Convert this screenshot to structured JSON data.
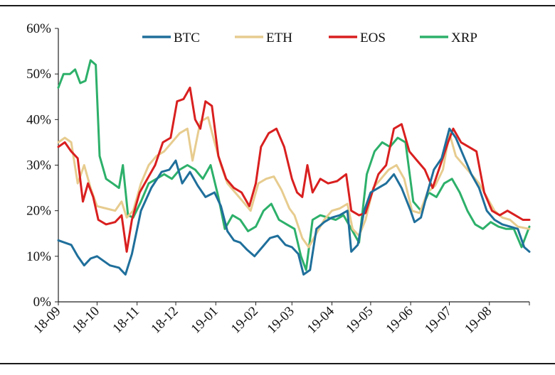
{
  "chart_data": {
    "type": "line",
    "ylim": [
      0,
      60
    ],
    "yticks": [
      "0%",
      "10%",
      "20%",
      "30%",
      "40%",
      "50%",
      "60%"
    ],
    "xrange": [
      "2018-09-01",
      "2019-09-01"
    ],
    "xticks": [
      {
        "label": "18-09",
        "date": "2018-09-01"
      },
      {
        "label": "18-10",
        "date": "2018-10-01"
      },
      {
        "label": "18-11",
        "date": "2018-11-01"
      },
      {
        "label": "18-12",
        "date": "2018-12-01"
      },
      {
        "label": "19-01",
        "date": "2019-01-01"
      },
      {
        "label": "19-02",
        "date": "2019-02-01"
      },
      {
        "label": "19-03",
        "date": "2019-03-01"
      },
      {
        "label": "19-04",
        "date": "2019-04-01"
      },
      {
        "label": "19-05",
        "date": "2019-05-01"
      },
      {
        "label": "19-06",
        "date": "2019-06-01"
      },
      {
        "label": "19-07",
        "date": "2019-07-01"
      },
      {
        "label": "19-08",
        "date": "2019-08-01"
      }
    ],
    "legend_position": "top",
    "grid": false,
    "series": [
      {
        "name": "BTC",
        "color": "#1f6f9b",
        "points": [
          [
            "2018-09-01",
            13.5
          ],
          [
            "2018-09-11",
            12.5
          ],
          [
            "2018-09-16",
            10.0
          ],
          [
            "2018-09-21",
            8.0
          ],
          [
            "2018-09-26",
            9.5
          ],
          [
            "2018-10-01",
            10.0
          ],
          [
            "2018-10-06",
            9.0
          ],
          [
            "2018-10-11",
            8.0
          ],
          [
            "2018-10-18",
            7.5
          ],
          [
            "2018-10-23",
            6.0
          ],
          [
            "2018-10-28",
            10.5
          ],
          [
            "2018-11-04",
            20.0
          ],
          [
            "2018-11-12",
            25.0
          ],
          [
            "2018-11-20",
            28.5
          ],
          [
            "2018-11-26",
            29.0
          ],
          [
            "2018-12-01",
            31.0
          ],
          [
            "2018-12-06",
            26.0
          ],
          [
            "2018-12-12",
            28.5
          ],
          [
            "2018-12-18",
            25.5
          ],
          [
            "2018-12-24",
            23.0
          ],
          [
            "2018-12-31",
            24.0
          ],
          [
            "2019-01-05",
            21.0
          ],
          [
            "2019-01-10",
            15.5
          ],
          [
            "2019-01-15",
            13.5
          ],
          [
            "2019-01-20",
            13.0
          ],
          [
            "2019-01-25",
            11.5
          ],
          [
            "2019-01-31",
            10.0
          ],
          [
            "2019-02-06",
            12.0
          ],
          [
            "2019-02-12",
            14.0
          ],
          [
            "2019-02-18",
            14.5
          ],
          [
            "2019-02-24",
            12.5
          ],
          [
            "2019-03-01",
            12.0
          ],
          [
            "2019-03-06",
            10.5
          ],
          [
            "2019-03-10",
            6.0
          ],
          [
            "2019-03-15",
            7.0
          ],
          [
            "2019-03-20",
            16.0
          ],
          [
            "2019-03-26",
            17.5
          ],
          [
            "2019-04-01",
            18.5
          ],
          [
            "2019-04-07",
            19.0
          ],
          [
            "2019-04-13",
            20.0
          ],
          [
            "2019-04-16",
            11.0
          ],
          [
            "2019-04-21",
            12.5
          ],
          [
            "2019-04-26",
            20.0
          ],
          [
            "2019-05-01",
            24.0
          ],
          [
            "2019-05-07",
            25.0
          ],
          [
            "2019-05-13",
            26.0
          ],
          [
            "2019-05-19",
            28.0
          ],
          [
            "2019-05-25",
            25.0
          ],
          [
            "2019-06-01",
            20.0
          ],
          [
            "2019-06-04",
            17.5
          ],
          [
            "2019-06-09",
            18.5
          ],
          [
            "2019-06-14",
            24.0
          ],
          [
            "2019-06-19",
            29.0
          ],
          [
            "2019-06-25",
            31.5
          ],
          [
            "2019-07-01",
            38.0
          ],
          [
            "2019-07-06",
            36.0
          ],
          [
            "2019-07-12",
            32.0
          ],
          [
            "2019-07-18",
            28.0
          ],
          [
            "2019-07-24",
            25.0
          ],
          [
            "2019-07-30",
            20.0
          ],
          [
            "2019-08-05",
            18.0
          ],
          [
            "2019-08-11",
            17.0
          ],
          [
            "2019-08-17",
            16.5
          ],
          [
            "2019-08-23",
            16.0
          ],
          [
            "2019-08-28",
            12.0
          ],
          [
            "2019-09-01",
            11.0
          ]
        ]
      },
      {
        "name": "ETH",
        "color": "#e7cc8f",
        "points": [
          [
            "2018-09-01",
            35.0
          ],
          [
            "2018-09-06",
            36.0
          ],
          [
            "2018-09-11",
            35.0
          ],
          [
            "2018-09-16",
            26.0
          ],
          [
            "2018-09-21",
            30.0
          ],
          [
            "2018-09-26",
            25.0
          ],
          [
            "2018-10-01",
            21.0
          ],
          [
            "2018-10-08",
            20.5
          ],
          [
            "2018-10-15",
            20.0
          ],
          [
            "2018-10-20",
            22.0
          ],
          [
            "2018-10-24",
            18.5
          ],
          [
            "2018-10-29",
            20.0
          ],
          [
            "2018-11-04",
            26.0
          ],
          [
            "2018-11-10",
            30.0
          ],
          [
            "2018-11-16",
            32.0
          ],
          [
            "2018-11-22",
            33.0
          ],
          [
            "2018-11-28",
            35.0
          ],
          [
            "2018-12-04",
            37.0
          ],
          [
            "2018-12-10",
            38.0
          ],
          [
            "2018-12-14",
            31.0
          ],
          [
            "2018-12-20",
            39.5
          ],
          [
            "2018-12-26",
            40.5
          ],
          [
            "2018-12-31",
            35.0
          ],
          [
            "2019-01-05",
            30.0
          ],
          [
            "2019-01-10",
            26.0
          ],
          [
            "2019-01-16",
            24.0
          ],
          [
            "2019-01-22",
            22.0
          ],
          [
            "2019-01-28",
            20.0
          ],
          [
            "2019-02-03",
            26.0
          ],
          [
            "2019-02-09",
            27.0
          ],
          [
            "2019-02-15",
            27.5
          ],
          [
            "2019-02-21",
            24.5
          ],
          [
            "2019-02-27",
            20.5
          ],
          [
            "2019-03-03",
            19.0
          ],
          [
            "2019-03-09",
            14.0
          ],
          [
            "2019-03-14",
            12.0
          ],
          [
            "2019-03-20",
            15.0
          ],
          [
            "2019-03-26",
            18.0
          ],
          [
            "2019-04-01",
            20.0
          ],
          [
            "2019-04-07",
            20.5
          ],
          [
            "2019-04-13",
            21.5
          ],
          [
            "2019-04-17",
            16.0
          ],
          [
            "2019-04-22",
            14.5
          ],
          [
            "2019-04-27",
            18.0
          ],
          [
            "2019-05-03",
            25.0
          ],
          [
            "2019-05-09",
            27.0
          ],
          [
            "2019-05-15",
            29.0
          ],
          [
            "2019-05-21",
            30.0
          ],
          [
            "2019-05-27",
            27.0
          ],
          [
            "2019-06-02",
            20.0
          ],
          [
            "2019-06-08",
            19.5
          ],
          [
            "2019-06-14",
            24.0
          ],
          [
            "2019-06-20",
            25.5
          ],
          [
            "2019-06-26",
            29.0
          ],
          [
            "2019-07-01",
            37.0
          ],
          [
            "2019-07-06",
            32.0
          ],
          [
            "2019-07-12",
            30.0
          ],
          [
            "2019-07-18",
            28.0
          ],
          [
            "2019-07-24",
            26.0
          ],
          [
            "2019-07-30",
            23.0
          ],
          [
            "2019-08-05",
            20.0
          ],
          [
            "2019-08-11",
            18.5
          ],
          [
            "2019-08-17",
            18.0
          ],
          [
            "2019-08-23",
            16.5
          ],
          [
            "2019-09-01",
            16.0
          ]
        ]
      },
      {
        "name": "EOS",
        "color": "#d91f1f",
        "points": [
          [
            "2018-09-01",
            34.0
          ],
          [
            "2018-09-06",
            35.0
          ],
          [
            "2018-09-11",
            33.0
          ],
          [
            "2018-09-16",
            31.5
          ],
          [
            "2018-09-20",
            22.0
          ],
          [
            "2018-09-24",
            26.0
          ],
          [
            "2018-09-28",
            23.0
          ],
          [
            "2018-10-02",
            18.0
          ],
          [
            "2018-10-08",
            17.0
          ],
          [
            "2018-10-15",
            17.5
          ],
          [
            "2018-10-20",
            19.0
          ],
          [
            "2018-10-24",
            11.0
          ],
          [
            "2018-10-28",
            18.0
          ],
          [
            "2018-11-03",
            24.0
          ],
          [
            "2018-11-09",
            27.0
          ],
          [
            "2018-11-15",
            30.0
          ],
          [
            "2018-11-21",
            35.0
          ],
          [
            "2018-11-27",
            36.0
          ],
          [
            "2018-12-02",
            44.0
          ],
          [
            "2018-12-07",
            44.5
          ],
          [
            "2018-12-12",
            47.0
          ],
          [
            "2018-12-16",
            40.0
          ],
          [
            "2018-12-20",
            38.0
          ],
          [
            "2018-12-24",
            44.0
          ],
          [
            "2018-12-29",
            43.0
          ],
          [
            "2019-01-03",
            32.0
          ],
          [
            "2019-01-09",
            27.0
          ],
          [
            "2019-01-15",
            25.0
          ],
          [
            "2019-01-21",
            24.0
          ],
          [
            "2019-01-27",
            21.0
          ],
          [
            "2019-02-01",
            26.0
          ],
          [
            "2019-02-05",
            34.0
          ],
          [
            "2019-02-11",
            37.0
          ],
          [
            "2019-02-17",
            38.0
          ],
          [
            "2019-02-23",
            34.0
          ],
          [
            "2019-03-01",
            27.0
          ],
          [
            "2019-03-05",
            24.0
          ],
          [
            "2019-03-09",
            23.0
          ],
          [
            "2019-03-13",
            30.0
          ],
          [
            "2019-03-17",
            24.0
          ],
          [
            "2019-03-23",
            27.0
          ],
          [
            "2019-03-29",
            26.0
          ],
          [
            "2019-04-05",
            26.5
          ],
          [
            "2019-04-12",
            28.0
          ],
          [
            "2019-04-16",
            20.0
          ],
          [
            "2019-04-22",
            19.0
          ],
          [
            "2019-04-27",
            19.5
          ],
          [
            "2019-05-01",
            23.0
          ],
          [
            "2019-05-07",
            28.0
          ],
          [
            "2019-05-13",
            30.0
          ],
          [
            "2019-05-19",
            38.0
          ],
          [
            "2019-05-25",
            39.0
          ],
          [
            "2019-05-31",
            33.0
          ],
          [
            "2019-06-06",
            31.0
          ],
          [
            "2019-06-12",
            29.0
          ],
          [
            "2019-06-18",
            25.0
          ],
          [
            "2019-06-24",
            30.0
          ],
          [
            "2019-06-30",
            35.0
          ],
          [
            "2019-07-04",
            38.0
          ],
          [
            "2019-07-10",
            35.0
          ],
          [
            "2019-07-16",
            34.0
          ],
          [
            "2019-07-22",
            33.0
          ],
          [
            "2019-07-28",
            24.0
          ],
          [
            "2019-08-03",
            20.0
          ],
          [
            "2019-08-09",
            19.0
          ],
          [
            "2019-08-15",
            20.0
          ],
          [
            "2019-08-21",
            19.0
          ],
          [
            "2019-08-27",
            18.0
          ],
          [
            "2019-09-01",
            18.0
          ]
        ]
      },
      {
        "name": "XRP",
        "color": "#2db06a",
        "points": [
          [
            "2018-09-01",
            47.0
          ],
          [
            "2018-09-05",
            50.0
          ],
          [
            "2018-09-10",
            50.0
          ],
          [
            "2018-09-14",
            51.0
          ],
          [
            "2018-09-18",
            48.0
          ],
          [
            "2018-09-22",
            48.5
          ],
          [
            "2018-09-26",
            53.0
          ],
          [
            "2018-09-30",
            52.0
          ],
          [
            "2018-10-03",
            32.0
          ],
          [
            "2018-10-08",
            27.0
          ],
          [
            "2018-10-13",
            26.0
          ],
          [
            "2018-10-18",
            25.0
          ],
          [
            "2018-10-21",
            30.0
          ],
          [
            "2018-10-25",
            19.0
          ],
          [
            "2018-10-29",
            18.5
          ],
          [
            "2018-11-04",
            22.0
          ],
          [
            "2018-11-10",
            26.0
          ],
          [
            "2018-11-16",
            27.0
          ],
          [
            "2018-11-22",
            28.0
          ],
          [
            "2018-11-28",
            27.0
          ],
          [
            "2018-12-04",
            29.0
          ],
          [
            "2018-12-10",
            30.0
          ],
          [
            "2018-12-16",
            29.0
          ],
          [
            "2018-12-22",
            27.0
          ],
          [
            "2018-12-28",
            30.0
          ],
          [
            "2019-01-03",
            23.0
          ],
          [
            "2019-01-08",
            16.0
          ],
          [
            "2019-01-14",
            19.0
          ],
          [
            "2019-01-20",
            18.0
          ],
          [
            "2019-01-26",
            15.5
          ],
          [
            "2019-02-01",
            16.5
          ],
          [
            "2019-02-07",
            20.0
          ],
          [
            "2019-02-13",
            21.5
          ],
          [
            "2019-02-19",
            18.0
          ],
          [
            "2019-02-25",
            17.0
          ],
          [
            "2019-03-03",
            16.0
          ],
          [
            "2019-03-08",
            10.0
          ],
          [
            "2019-03-12",
            7.0
          ],
          [
            "2019-03-17",
            18.0
          ],
          [
            "2019-03-23",
            19.0
          ],
          [
            "2019-03-29",
            18.5
          ],
          [
            "2019-04-04",
            18.0
          ],
          [
            "2019-04-10",
            19.0
          ],
          [
            "2019-04-16",
            16.0
          ],
          [
            "2019-04-22",
            13.0
          ],
          [
            "2019-04-28",
            28.0
          ],
          [
            "2019-05-04",
            33.0
          ],
          [
            "2019-05-10",
            35.0
          ],
          [
            "2019-05-16",
            34.0
          ],
          [
            "2019-05-22",
            36.0
          ],
          [
            "2019-05-28",
            35.0
          ],
          [
            "2019-06-03",
            22.0
          ],
          [
            "2019-06-09",
            20.0
          ],
          [
            "2019-06-15",
            24.0
          ],
          [
            "2019-06-21",
            23.0
          ],
          [
            "2019-06-27",
            26.0
          ],
          [
            "2019-07-03",
            27.0
          ],
          [
            "2019-07-09",
            24.0
          ],
          [
            "2019-07-15",
            20.0
          ],
          [
            "2019-07-21",
            17.0
          ],
          [
            "2019-07-27",
            16.0
          ],
          [
            "2019-08-02",
            17.5
          ],
          [
            "2019-08-08",
            16.5
          ],
          [
            "2019-08-14",
            16.0
          ],
          [
            "2019-08-20",
            16.0
          ],
          [
            "2019-08-26",
            12.0
          ],
          [
            "2019-09-01",
            16.5
          ]
        ]
      }
    ]
  }
}
